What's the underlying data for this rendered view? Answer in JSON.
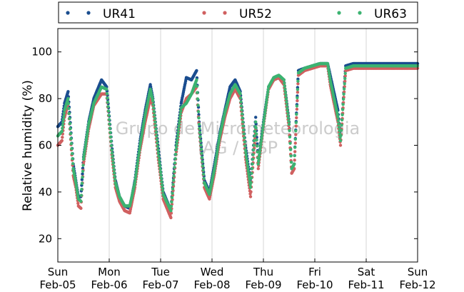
{
  "chart_data": {
    "type": "scatter",
    "ylabel": "Relative humidity (%)",
    "ylim": [
      10,
      110
    ],
    "yticks": [
      20,
      40,
      60,
      80,
      100
    ],
    "x_day_ticks": [
      {
        "weekday": "Sun",
        "date": "Feb-05"
      },
      {
        "weekday": "Mon",
        "date": "Feb-06"
      },
      {
        "weekday": "Tue",
        "date": "Feb-07"
      },
      {
        "weekday": "Wed",
        "date": "Feb-08"
      },
      {
        "weekday": "Thu",
        "date": "Feb-09"
      },
      {
        "weekday": "Fri",
        "date": "Feb-10"
      },
      {
        "weekday": "Sat",
        "date": "Feb-11"
      },
      {
        "weekday": "Sun",
        "date": "Feb-12"
      }
    ],
    "xlim_days": [
      0,
      7
    ],
    "grid": "vertical",
    "legend_position": "top",
    "watermark": [
      "Grupo de Micrometeorologia",
      "IAG / USP"
    ],
    "series": [
      {
        "name": "UR41",
        "color": "#1a4d8f",
        "points": [
          [
            0,
            68
          ],
          [
            0.08,
            70
          ],
          [
            0.13,
            78
          ],
          [
            0.2,
            83
          ],
          [
            0.3,
            52
          ],
          [
            0.35,
            45
          ],
          [
            0.4,
            38
          ],
          [
            0.45,
            38
          ],
          [
            0.5,
            55
          ],
          [
            0.6,
            70
          ],
          [
            0.7,
            80
          ],
          [
            0.85,
            88
          ],
          [
            0.95,
            85
          ],
          [
            1.05,
            60
          ],
          [
            1.12,
            45
          ],
          [
            1.2,
            38
          ],
          [
            1.3,
            34
          ],
          [
            1.4,
            33
          ],
          [
            1.5,
            45
          ],
          [
            1.6,
            62
          ],
          [
            1.7,
            75
          ],
          [
            1.8,
            86
          ],
          [
            1.85,
            80
          ],
          [
            1.95,
            60
          ],
          [
            2.05,
            40
          ],
          [
            2.2,
            32
          ],
          [
            2.3,
            60
          ],
          [
            2.4,
            78
          ],
          [
            2.5,
            89
          ],
          [
            2.6,
            88
          ],
          [
            2.7,
            92
          ],
          [
            2.75,
            70
          ],
          [
            2.85,
            45
          ],
          [
            2.95,
            40
          ],
          [
            3.05,
            52
          ],
          [
            3.15,
            65
          ],
          [
            3.25,
            75
          ],
          [
            3.35,
            85
          ],
          [
            3.45,
            88
          ],
          [
            3.55,
            83
          ],
          [
            3.65,
            60
          ],
          [
            3.75,
            44
          ],
          [
            3.85,
            72
          ],
          [
            3.9,
            52
          ],
          [
            4,
            70
          ],
          [
            4.1,
            85
          ],
          [
            4.2,
            88
          ],
          [
            4.3,
            89
          ],
          [
            4.4,
            88
          ],
          [
            4.5,
            70
          ],
          [
            4.55,
            50
          ],
          [
            4.6,
            52
          ],
          [
            4.68,
            92
          ],
          [
            4.8,
            93
          ],
          [
            4.95,
            94
          ],
          [
            5.1,
            95
          ],
          [
            5.25,
            95
          ],
          [
            5.3,
            90
          ],
          [
            5.45,
            75
          ],
          [
            5.5,
            62
          ],
          [
            5.6,
            94
          ],
          [
            5.75,
            95
          ],
          [
            7,
            95
          ]
        ]
      },
      {
        "name": "UR52",
        "color": "#d06060",
        "points": [
          [
            0,
            60
          ],
          [
            0.08,
            62
          ],
          [
            0.13,
            72
          ],
          [
            0.2,
            78
          ],
          [
            0.3,
            47
          ],
          [
            0.35,
            42
          ],
          [
            0.4,
            34
          ],
          [
            0.45,
            33
          ],
          [
            0.5,
            52
          ],
          [
            0.6,
            67
          ],
          [
            0.7,
            77
          ],
          [
            0.85,
            82
          ],
          [
            0.95,
            82
          ],
          [
            1.05,
            56
          ],
          [
            1.12,
            42
          ],
          [
            1.2,
            36
          ],
          [
            1.3,
            32
          ],
          [
            1.4,
            31
          ],
          [
            1.5,
            42
          ],
          [
            1.6,
            58
          ],
          [
            1.7,
            70
          ],
          [
            1.8,
            80
          ],
          [
            1.85,
            77
          ],
          [
            1.95,
            55
          ],
          [
            2.05,
            37
          ],
          [
            2.2,
            29
          ],
          [
            2.3,
            56
          ],
          [
            2.4,
            74
          ],
          [
            2.5,
            80
          ],
          [
            2.6,
            82
          ],
          [
            2.7,
            85
          ],
          [
            2.75,
            67
          ],
          [
            2.85,
            42
          ],
          [
            2.95,
            37
          ],
          [
            3.05,
            48
          ],
          [
            3.15,
            62
          ],
          [
            3.25,
            72
          ],
          [
            3.35,
            80
          ],
          [
            3.45,
            84
          ],
          [
            3.55,
            80
          ],
          [
            3.65,
            55
          ],
          [
            3.75,
            38
          ],
          [
            3.85,
            67
          ],
          [
            3.9,
            50
          ],
          [
            4,
            68
          ],
          [
            4.1,
            84
          ],
          [
            4.2,
            88
          ],
          [
            4.3,
            89
          ],
          [
            4.4,
            86
          ],
          [
            4.5,
            67
          ],
          [
            4.55,
            48
          ],
          [
            4.6,
            50
          ],
          [
            4.68,
            90
          ],
          [
            4.8,
            92
          ],
          [
            4.95,
            93
          ],
          [
            5.1,
            94
          ],
          [
            5.25,
            94
          ],
          [
            5.3,
            86
          ],
          [
            5.45,
            70
          ],
          [
            5.5,
            60
          ],
          [
            5.6,
            92
          ],
          [
            5.75,
            93
          ],
          [
            7,
            93
          ]
        ]
      },
      {
        "name": "UR63",
        "color": "#3cb371",
        "points": [
          [
            0,
            64
          ],
          [
            0.08,
            66
          ],
          [
            0.13,
            75
          ],
          [
            0.2,
            80
          ],
          [
            0.3,
            50
          ],
          [
            0.35,
            44
          ],
          [
            0.4,
            37
          ],
          [
            0.45,
            36
          ],
          [
            0.5,
            54
          ],
          [
            0.6,
            69
          ],
          [
            0.7,
            78
          ],
          [
            0.85,
            85
          ],
          [
            0.95,
            84
          ],
          [
            1.05,
            58
          ],
          [
            1.12,
            44
          ],
          [
            1.2,
            38
          ],
          [
            1.3,
            34
          ],
          [
            1.4,
            34
          ],
          [
            1.5,
            44
          ],
          [
            1.6,
            60
          ],
          [
            1.7,
            73
          ],
          [
            1.8,
            84
          ],
          [
            1.85,
            79
          ],
          [
            1.95,
            58
          ],
          [
            2.05,
            39
          ],
          [
            2.2,
            32
          ],
          [
            2.3,
            58
          ],
          [
            2.4,
            76
          ],
          [
            2.5,
            78
          ],
          [
            2.6,
            82
          ],
          [
            2.7,
            88
          ],
          [
            2.75,
            69
          ],
          [
            2.85,
            44
          ],
          [
            2.95,
            39
          ],
          [
            3.05,
            50
          ],
          [
            3.15,
            64
          ],
          [
            3.25,
            74
          ],
          [
            3.35,
            82
          ],
          [
            3.45,
            86
          ],
          [
            3.55,
            82
          ],
          [
            3.65,
            58
          ],
          [
            3.75,
            42
          ],
          [
            3.85,
            70
          ],
          [
            3.9,
            52
          ],
          [
            4,
            69
          ],
          [
            4.1,
            85
          ],
          [
            4.2,
            89
          ],
          [
            4.3,
            90
          ],
          [
            4.4,
            88
          ],
          [
            4.5,
            69
          ],
          [
            4.55,
            50
          ],
          [
            4.6,
            52
          ],
          [
            4.68,
            91
          ],
          [
            4.8,
            93
          ],
          [
            4.95,
            94
          ],
          [
            5.1,
            95
          ],
          [
            5.25,
            95
          ],
          [
            5.3,
            88
          ],
          [
            5.45,
            72
          ],
          [
            5.5,
            62
          ],
          [
            5.6,
            93
          ],
          [
            5.75,
            94
          ],
          [
            7,
            94
          ]
        ]
      }
    ]
  }
}
